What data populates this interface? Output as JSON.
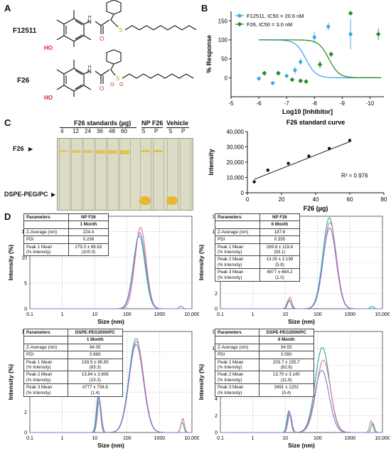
{
  "panels": {
    "A": "A",
    "B": "B",
    "C": "C",
    "D": "D"
  },
  "panelA": {
    "compound1": "F12511",
    "compound2": "F26",
    "oh": "HO",
    "n1": "N",
    "h1": "H",
    "o1": "O",
    "s1": "S",
    "n2": "N",
    "h2": "H",
    "o2": "O",
    "s2": "S",
    "o3": "O",
    "o4": "O"
  },
  "chart_data": [
    {
      "type": "scatter",
      "xlabel": "Log10 [Inhibitor]",
      "ylabel": "% Response",
      "xlim": [
        -5,
        -10.5
      ],
      "ylim": [
        -50,
        175
      ],
      "xticks": [
        "-5",
        "-6",
        "-7",
        "-8",
        "-9",
        "-10"
      ],
      "yticks": [
        "0",
        "50",
        "100",
        "150"
      ],
      "legend_position": "top-left",
      "series": [
        {
          "name": "F12511, IC50 = 20.6 nM",
          "color": "#3fa9e0",
          "x": [
            -6,
            -6.5,
            -7,
            -7.3,
            -7.5,
            -8,
            -8.5,
            -9.3
          ],
          "y": [
            -2,
            -14,
            5,
            20,
            42,
            107,
            135,
            115
          ],
          "err": [
            3,
            5,
            4,
            10,
            8,
            15,
            10,
            40
          ]
        },
        {
          "name": "F26, IC50 = 3.0 nM",
          "color": "#2e8b2e",
          "x": [
            -6.2,
            -6.7,
            -7.2,
            -7.5,
            -7.7,
            -8.2,
            -8.6,
            -9.3,
            -10.3
          ],
          "y": [
            12,
            12,
            -5,
            -8,
            -10,
            35,
            62,
            170,
            115
          ],
          "err": [
            3,
            4,
            3,
            3,
            3,
            10,
            8,
            5,
            15
          ]
        }
      ]
    },
    {
      "type": "scatter",
      "title": "F26 standard curve",
      "xlabel": "F26 (µg)",
      "ylabel": "Intensity",
      "xlim": [
        0,
        80
      ],
      "ylim": [
        0,
        40000
      ],
      "xticks": [
        "0",
        "20",
        "40",
        "60",
        "80"
      ],
      "yticks": [
        "0",
        "10,000",
        "20,000",
        "30,000",
        "40,000"
      ],
      "x": [
        4,
        12,
        24,
        36,
        48,
        60
      ],
      "y": [
        7200,
        14800,
        19200,
        24000,
        29000,
        34200
      ],
      "fit": {
        "x": [
          4,
          60
        ],
        "y": [
          8800,
          33400
        ]
      },
      "r2": "R² = 0.976"
    },
    {
      "type": "line",
      "ylabel": "Intensity (%)",
      "xlabel": "Size (nm)",
      "xscale": "log",
      "xlim": [
        0.1,
        10000
      ],
      "ylim": [
        0,
        18
      ],
      "xticks": [
        "0.1",
        "1",
        "10",
        "100",
        "1000",
        "10,000"
      ],
      "yticks": [
        "0",
        "5",
        "10",
        "15"
      ],
      "series": [
        {
          "color": "#2aa7a7",
          "peaks": [
            [
              235,
              14.2,
              0.18
            ]
          ]
        },
        {
          "color": "#e07a7a",
          "peaks": [
            [
              260,
              15.8,
              0.17
            ]
          ]
        },
        {
          "color": "#7a7adc",
          "peaks": [
            [
              245,
              14.8,
              0.18
            ],
            [
              4500,
              0.5,
              0.05
            ]
          ]
        }
      ]
    },
    {
      "type": "line",
      "ylabel": "Intensity (%)",
      "xlabel": "Size (nm)",
      "xscale": "log",
      "xlim": [
        0.1,
        10000
      ],
      "ylim": [
        0,
        12
      ],
      "xticks": [
        "0.1",
        "1",
        "10",
        "100",
        "1000",
        "10,000"
      ],
      "yticks": [
        "0",
        "2",
        "4",
        "6",
        "8",
        "10",
        "12"
      ],
      "series": [
        {
          "color": "#2aa7a7",
          "peaks": [
            [
              13,
              1.2,
              0.06
            ],
            [
              230,
              11.8,
              0.2
            ],
            [
              4800,
              0.3,
              0.05
            ]
          ]
        },
        {
          "color": "#e07a7a",
          "peaks": [
            [
              14,
              1.5,
              0.06
            ],
            [
              240,
              11.2,
              0.2
            ]
          ]
        },
        {
          "color": "#7a7adc",
          "peaks": [
            [
              13.5,
              1.0,
              0.06
            ],
            [
              235,
              10.5,
              0.2
            ]
          ]
        }
      ]
    },
    {
      "type": "line",
      "ylabel": "Intensity (%)",
      "xlabel": "Size (nm)",
      "xscale": "log",
      "xlim": [
        0.1,
        10000
      ],
      "ylim": [
        0,
        10
      ],
      "xticks": [
        "0.1",
        "1",
        "10",
        "100",
        "1000",
        "10,000"
      ],
      "yticks": [
        "0",
        "2",
        "4",
        "6",
        "8",
        "10"
      ],
      "series": [
        {
          "color": "#2aa7a7",
          "peaks": [
            [
              13,
              3.8,
              0.06
            ],
            [
              190,
              9.3,
              0.22
            ],
            [
              5000,
              1.0,
              0.05
            ]
          ]
        },
        {
          "color": "#e07a7a",
          "peaks": [
            [
              14,
              3.2,
              0.06
            ],
            [
              195,
              9.0,
              0.22
            ],
            [
              5200,
              1.4,
              0.05
            ]
          ]
        },
        {
          "color": "#7a7adc",
          "peaks": [
            [
              13.5,
              3.5,
              0.06
            ],
            [
              190,
              8.7,
              0.22
            ]
          ]
        }
      ]
    },
    {
      "type": "line",
      "ylabel": "Intensity (%)",
      "xlabel": "Size (nm)",
      "xscale": "log",
      "xlim": [
        0.1,
        10000
      ],
      "ylim": [
        0,
        12
      ],
      "xticks": [
        "0.1",
        "1",
        "10",
        "100",
        "1000",
        "10,000"
      ],
      "yticks": [
        "0",
        "2",
        "4",
        "6",
        "8",
        "10",
        "12"
      ],
      "series": [
        {
          "color": "#2aa7a7",
          "peaks": [
            [
              13,
              2.6,
              0.06
            ],
            [
              140,
              10.1,
              0.22
            ],
            [
              5000,
              1.1,
              0.05
            ]
          ]
        },
        {
          "color": "#e07a7a",
          "peaks": [
            [
              14,
              2.2,
              0.06
            ],
            [
              150,
              8.6,
              0.22
            ],
            [
              4500,
              1.4,
              0.05
            ]
          ]
        },
        {
          "color": "#7a7adc",
          "peaks": [
            [
              13.5,
              2.4,
              0.06
            ],
            [
              135,
              7.4,
              0.22
            ]
          ]
        }
      ]
    }
  ],
  "panelC": {
    "title": "F26 standards (µg)",
    "np": "NP F26",
    "vehicle": "Vehicle",
    "lanes": [
      "4",
      "12",
      "24",
      "36",
      "48",
      "60",
      "S",
      "P",
      "S",
      "P"
    ],
    "f26": "F26",
    "dspe": "DSPE-PEG/PC"
  },
  "tables": [
    {
      "h1": "Parameters",
      "h2": "NP F26",
      "month": "1 Month",
      "rows": [
        [
          "Z-Average (nm)",
          "224.4"
        ],
        [
          "PDI",
          "0.236"
        ],
        [
          "Peak 1 Mean\n(% Intensity)",
          "279.0 ± 88.63\n(100.0)"
        ]
      ]
    },
    {
      "h1": "Parameters",
      "h2": "NP F26",
      "month": "6 Month",
      "rows": [
        [
          "Z-Average (nm)",
          "187.6"
        ],
        [
          "PDI",
          "0.335"
        ],
        [
          "Peak 1 Mean\n(% Intensity)",
          "269.8 ± 119.8\n(93.1)"
        ],
        [
          "Peak 2 Mean\n(% Intensity)",
          "13.35 ± 2.199\n(5.9)"
        ],
        [
          "Peak 3 Mean\n(% Intensity)",
          "4877 ± 684.2\n(1.0)"
        ]
      ]
    },
    {
      "h1": "Parameters",
      "h2": "DSPE-PEG2000/PC",
      "month": "1 Month",
      "rows": [
        [
          "Z-Average (nm)",
          "84.05"
        ],
        [
          "PDI",
          "0.669"
        ],
        [
          "Peak 1 Mean\n(% Intensity)",
          "193.5 ± 95.85\n(83.3)"
        ],
        [
          "Peak 2 Mean\n(% Intensity)",
          "13.84 ± 3.806\n(15.3)"
        ],
        [
          "Peak 3 Mean\n(% Intensity)",
          "4777 ± 734.8\n(1.4)"
        ]
      ]
    },
    {
      "h1": "Parameters",
      "h2": "DSPE-PEG2000/PC",
      "month": "6 Month",
      "rows": [
        [
          "Z-Average (nm)",
          "94.55"
        ],
        [
          "PDI",
          "0.590"
        ],
        [
          "Peak 1 Mean\n(% Intensity)",
          "203.7 ± 155.7\n(82.8)"
        ],
        [
          "Peak 2 Mean\n(% Intensity)",
          "13.70 ± 3.140\n(11.8)"
        ],
        [
          "Peak 3 Mean\n(% Intensity)",
          "3491 ± 1252\n(5.4)"
        ]
      ]
    }
  ]
}
